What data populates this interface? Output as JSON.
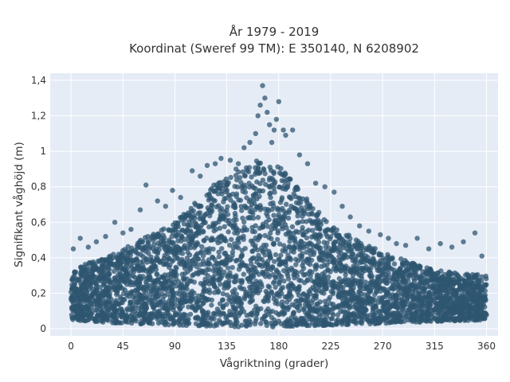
{
  "chart_data": {
    "type": "scatter",
    "title": "År 1979 - 2019",
    "subtitle": "Koordinat (Sweref 99 TM): E 350140, N 6208902",
    "xlabel": "Vågriktning (grader)",
    "ylabel": "Signifikant våghöjd (m)",
    "xlim": [
      -18,
      370
    ],
    "ylim": [
      -0.04,
      1.44
    ],
    "xticks": [
      0,
      45,
      90,
      135,
      180,
      225,
      270,
      315,
      360
    ],
    "xtick_labels": [
      "0",
      "45",
      "90",
      "135",
      "180",
      "225",
      "270",
      "315",
      "360"
    ],
    "yticks": [
      0,
      0.2,
      0.4,
      0.6,
      0.8,
      1.0,
      1.2,
      1.4
    ],
    "ytick_labels": [
      "0",
      "0,2",
      "0,4",
      "0,6",
      "0,8",
      "1",
      "1,2",
      "1,4"
    ],
    "grid": true,
    "marker_color": "#2f5570",
    "background_color": "#e5ecf6",
    "envelope": {
      "x": [
        0,
        45,
        90,
        135,
        165,
        180,
        225,
        270,
        315,
        360
      ],
      "y_max": [
        0.33,
        0.45,
        0.6,
        0.88,
        0.96,
        0.92,
        0.58,
        0.43,
        0.33,
        0.3
      ],
      "y_min": [
        0.05,
        0.03,
        0.02,
        0.01,
        0.01,
        0.01,
        0.02,
        0.03,
        0.04,
        0.05
      ]
    },
    "outliers": [
      {
        "x": 2,
        "y": 0.45
      },
      {
        "x": 8,
        "y": 0.51
      },
      {
        "x": 15,
        "y": 0.46
      },
      {
        "x": 22,
        "y": 0.49
      },
      {
        "x": 30,
        "y": 0.52
      },
      {
        "x": 38,
        "y": 0.6
      },
      {
        "x": 45,
        "y": 0.54
      },
      {
        "x": 52,
        "y": 0.56
      },
      {
        "x": 60,
        "y": 0.67
      },
      {
        "x": 65,
        "y": 0.81
      },
      {
        "x": 75,
        "y": 0.72
      },
      {
        "x": 82,
        "y": 0.69
      },
      {
        "x": 88,
        "y": 0.78
      },
      {
        "x": 95,
        "y": 0.74
      },
      {
        "x": 105,
        "y": 0.89
      },
      {
        "x": 112,
        "y": 0.86
      },
      {
        "x": 118,
        "y": 0.92
      },
      {
        "x": 125,
        "y": 0.93
      },
      {
        "x": 130,
        "y": 0.96
      },
      {
        "x": 138,
        "y": 0.95
      },
      {
        "x": 145,
        "y": 0.93
      },
      {
        "x": 150,
        "y": 1.02
      },
      {
        "x": 155,
        "y": 1.05
      },
      {
        "x": 160,
        "y": 1.1
      },
      {
        "x": 162,
        "y": 1.2
      },
      {
        "x": 164,
        "y": 1.26
      },
      {
        "x": 166,
        "y": 1.37
      },
      {
        "x": 168,
        "y": 1.3
      },
      {
        "x": 170,
        "y": 1.22
      },
      {
        "x": 172,
        "y": 1.15
      },
      {
        "x": 174,
        "y": 1.05
      },
      {
        "x": 176,
        "y": 1.12
      },
      {
        "x": 178,
        "y": 1.18
      },
      {
        "x": 180,
        "y": 1.28
      },
      {
        "x": 184,
        "y": 1.12
      },
      {
        "x": 186,
        "y": 1.09
      },
      {
        "x": 192,
        "y": 1.12
      },
      {
        "x": 198,
        "y": 0.98
      },
      {
        "x": 205,
        "y": 0.93
      },
      {
        "x": 212,
        "y": 0.82
      },
      {
        "x": 220,
        "y": 0.8
      },
      {
        "x": 228,
        "y": 0.77
      },
      {
        "x": 235,
        "y": 0.69
      },
      {
        "x": 242,
        "y": 0.63
      },
      {
        "x": 250,
        "y": 0.58
      },
      {
        "x": 258,
        "y": 0.55
      },
      {
        "x": 268,
        "y": 0.53
      },
      {
        "x": 275,
        "y": 0.51
      },
      {
        "x": 282,
        "y": 0.48
      },
      {
        "x": 290,
        "y": 0.47
      },
      {
        "x": 300,
        "y": 0.51
      },
      {
        "x": 310,
        "y": 0.45
      },
      {
        "x": 320,
        "y": 0.48
      },
      {
        "x": 330,
        "y": 0.46
      },
      {
        "x": 340,
        "y": 0.49
      },
      {
        "x": 350,
        "y": 0.54
      },
      {
        "x": 356,
        "y": 0.41
      }
    ]
  }
}
